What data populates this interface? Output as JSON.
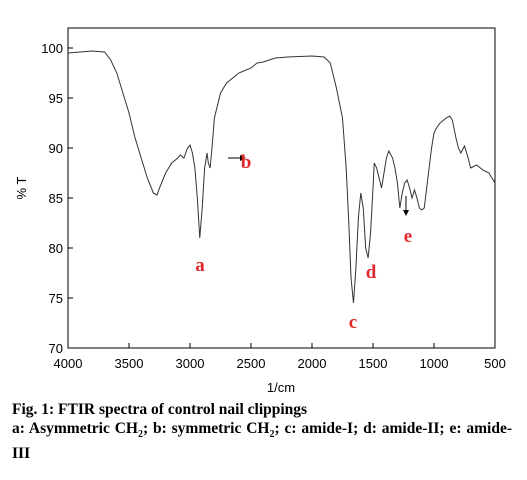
{
  "chart_data": {
    "type": "line",
    "xlabel": "1/cm",
    "ylabel": "% T",
    "xlim": [
      4000,
      500
    ],
    "ylim": [
      70,
      102
    ],
    "xticks": [
      4000,
      3500,
      3000,
      2500,
      2000,
      1500,
      1000,
      500
    ],
    "yticks": [
      70,
      75,
      80,
      85,
      90,
      95,
      100
    ],
    "x": [
      4000,
      3900,
      3800,
      3700,
      3650,
      3600,
      3550,
      3500,
      3450,
      3400,
      3350,
      3300,
      3270,
      3250,
      3200,
      3150,
      3100,
      3080,
      3050,
      3020,
      3000,
      2980,
      2960,
      2940,
      2920,
      2900,
      2880,
      2860,
      2850,
      2835,
      2820,
      2800,
      2750,
      2700,
      2600,
      2500,
      2450,
      2400,
      2300,
      2200,
      2000,
      1900,
      1850,
      1800,
      1750,
      1720,
      1700,
      1680,
      1660,
      1640,
      1620,
      1600,
      1580,
      1560,
      1540,
      1520,
      1500,
      1490,
      1470,
      1450,
      1430,
      1410,
      1390,
      1370,
      1340,
      1320,
      1300,
      1280,
      1260,
      1240,
      1220,
      1200,
      1180,
      1160,
      1140,
      1120,
      1100,
      1080,
      1060,
      1040,
      1020,
      1000,
      980,
      950,
      900,
      870,
      850,
      820,
      800,
      780,
      750,
      720,
      700,
      650,
      600,
      550,
      500
    ],
    "series": [
      {
        "color": "#333333",
        "values": [
          99.5,
          99.6,
          99.7,
          99.6,
          98.8,
          97.5,
          95.5,
          93.5,
          91,
          89,
          87,
          85.5,
          85.3,
          86,
          87.5,
          88.5,
          89,
          89.3,
          89,
          90,
          90.3,
          89.5,
          88,
          85,
          81,
          84,
          88,
          89.5,
          88.5,
          88,
          90,
          93,
          95.5,
          96.5,
          97.5,
          98,
          98.5,
          98.6,
          99,
          99.1,
          99.2,
          99.1,
          98.5,
          96,
          93,
          88,
          83,
          77,
          74.5,
          78,
          83,
          85.5,
          84,
          80,
          79,
          81.5,
          86,
          88.5,
          88,
          87,
          86,
          87.5,
          89,
          89.7,
          89,
          88,
          86.5,
          84,
          85.5,
          86.5,
          86.8,
          86,
          85,
          85.8,
          85,
          84,
          83.8,
          84,
          86,
          88,
          90,
          91.5,
          92,
          92.5,
          93,
          93.2,
          92.8,
          91,
          90,
          89.5,
          90.2,
          89,
          88,
          88.3,
          87.8,
          87.5,
          86.5
        ]
      }
    ],
    "annotations": [
      "a",
      "b",
      "c",
      "d",
      "e"
    ]
  },
  "caption": {
    "title": "Fig. 1: FTIR spectra of control nail clippings",
    "parts": [
      "a: Asymmetric CH",
      "2",
      "; b: symmetric CH",
      "2",
      "; c: amide-I; d: amide-II; e: amide-III"
    ]
  }
}
